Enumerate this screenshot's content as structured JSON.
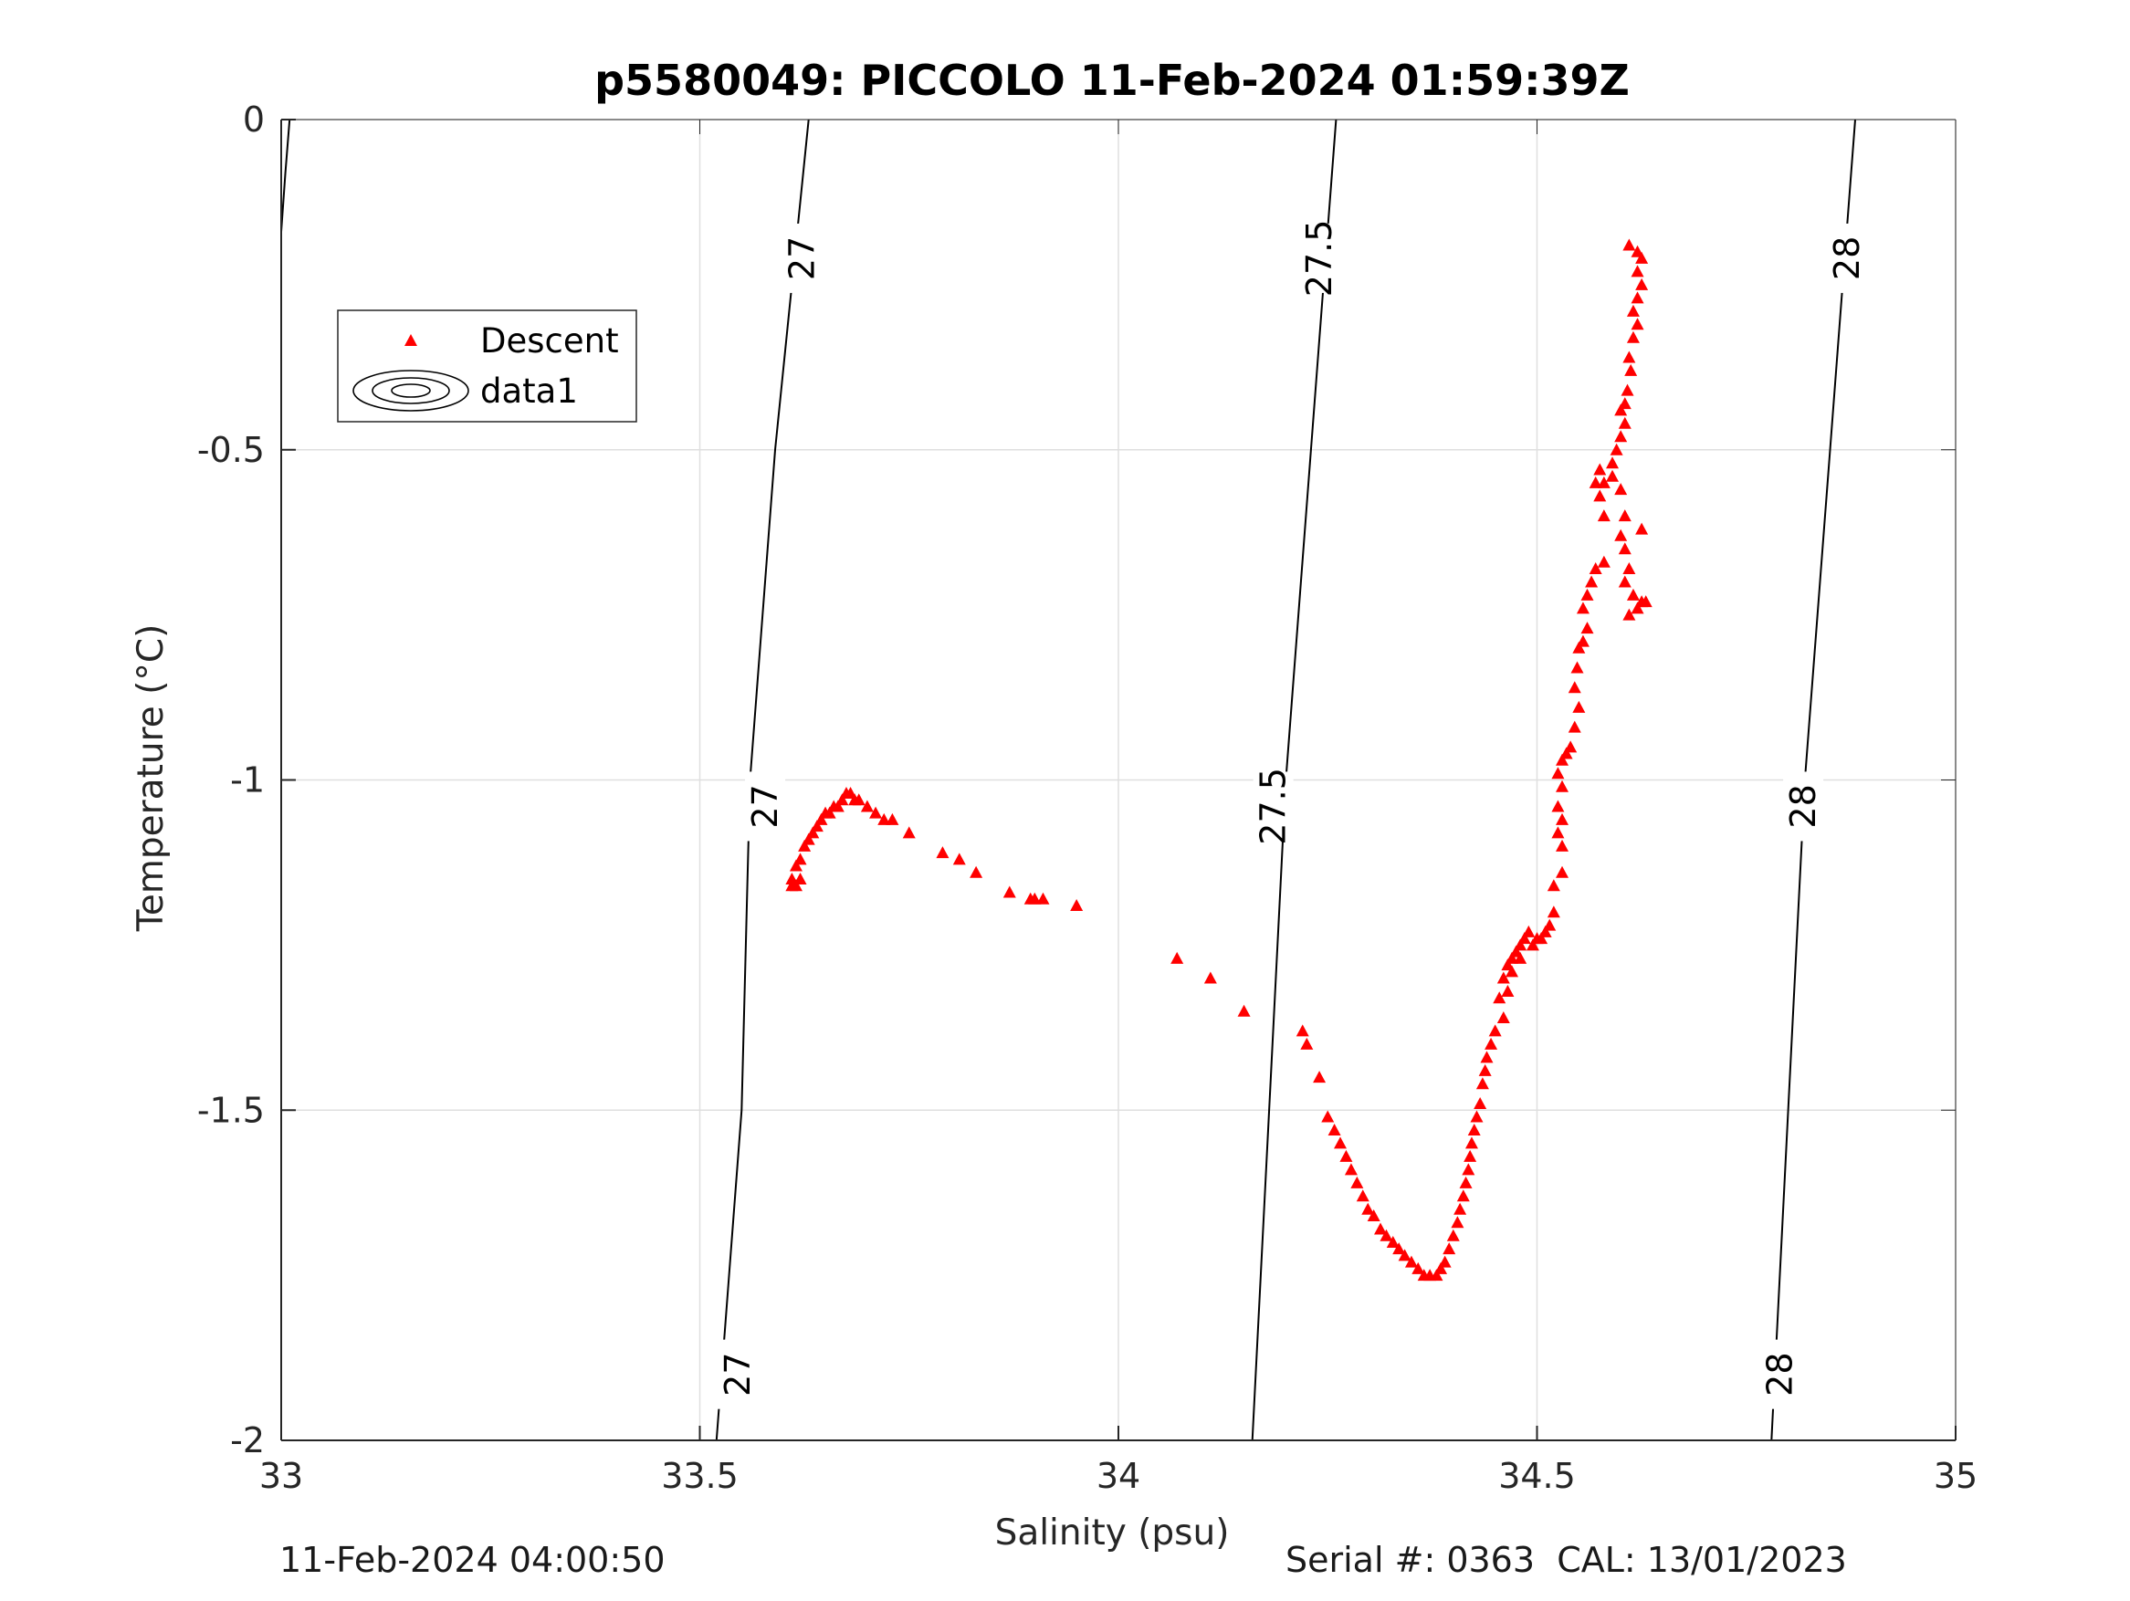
{
  "chart_data": {
    "type": "scatter",
    "title": "p5580049: PICCOLO 11-Feb-2024 01:59:39Z",
    "xlabel": "Salinity (psu)",
    "ylabel": "Temperature (°C)",
    "xlim": [
      33,
      35
    ],
    "ylim": [
      -2,
      0
    ],
    "xticks": [
      33,
      33.5,
      34,
      34.5,
      35
    ],
    "xtick_labels": [
      "33",
      "33.5",
      "34",
      "34.5",
      "35"
    ],
    "yticks": [
      0,
      -0.5,
      -1,
      -1.5,
      -2
    ],
    "ytick_labels": [
      "0",
      "-0.5",
      "-1",
      "-1.5",
      "-2"
    ],
    "grid": true,
    "legend": {
      "placement": "top-left",
      "entries": [
        {
          "label": "Descent",
          "marker": "triangle",
          "color": "#ff0000"
        },
        {
          "label": "data1",
          "marker": "contour",
          "color": "#000000"
        }
      ]
    },
    "contours": [
      {
        "label": "27",
        "line": [
          [
            33.52,
            -2
          ],
          [
            33.55,
            -1.5
          ],
          [
            33.56,
            -1
          ],
          [
            33.59,
            -0.5
          ],
          [
            33.63,
            0
          ]
        ],
        "label_positions": [
          [
            33.545,
            -1.9
          ],
          [
            33.578,
            -1.04
          ],
          [
            33.622,
            -0.21
          ]
        ]
      },
      {
        "label": "27.5",
        "line": [
          [
            34.16,
            -2
          ],
          [
            34.18,
            -1.5
          ],
          [
            34.2,
            -1
          ],
          [
            34.23,
            -0.5
          ],
          [
            34.26,
            0
          ]
        ],
        "label_positions": [
          [
            34.185,
            -1.04
          ],
          [
            34.24,
            -0.21
          ]
        ]
      },
      {
        "label": "28",
        "line": [
          [
            34.78,
            -2
          ],
          [
            34.8,
            -1.5
          ],
          [
            34.82,
            -1
          ],
          [
            34.85,
            -0.5
          ],
          [
            34.88,
            0
          ]
        ],
        "label_positions": [
          [
            34.79,
            -1.9
          ],
          [
            34.818,
            -1.04
          ],
          [
            34.87,
            -0.21
          ]
        ]
      },
      {
        "label": "",
        "line": [
          [
            33,
            -0.17
          ],
          [
            33.005,
            -0.08
          ],
          [
            33.01,
            0
          ]
        ],
        "label_positions": []
      }
    ],
    "series": [
      {
        "name": "Descent",
        "marker": "triangle",
        "color": "#ff0000",
        "points": [
          [
            34.61,
            -0.19
          ],
          [
            34.62,
            -0.2
          ],
          [
            34.625,
            -0.21
          ],
          [
            34.62,
            -0.23
          ],
          [
            34.625,
            -0.25
          ],
          [
            34.62,
            -0.27
          ],
          [
            34.615,
            -0.29
          ],
          [
            34.62,
            -0.31
          ],
          [
            34.615,
            -0.33
          ],
          [
            34.61,
            -0.36
          ],
          [
            34.612,
            -0.38
          ],
          [
            34.608,
            -0.41
          ],
          [
            34.605,
            -0.43
          ],
          [
            34.6,
            -0.44
          ],
          [
            34.605,
            -0.46
          ],
          [
            34.6,
            -0.48
          ],
          [
            34.595,
            -0.5
          ],
          [
            34.59,
            -0.52
          ],
          [
            34.59,
            -0.54
          ],
          [
            34.58,
            -0.55
          ],
          [
            34.575,
            -0.53
          ],
          [
            34.57,
            -0.55
          ],
          [
            34.575,
            -0.57
          ],
          [
            34.58,
            -0.6
          ],
          [
            34.6,
            -0.56
          ],
          [
            34.605,
            -0.6
          ],
          [
            34.6,
            -0.63
          ],
          [
            34.605,
            -0.65
          ],
          [
            34.61,
            -0.68
          ],
          [
            34.605,
            -0.7
          ],
          [
            34.615,
            -0.72
          ],
          [
            34.62,
            -0.74
          ],
          [
            34.61,
            -0.75
          ],
          [
            34.625,
            -0.73
          ],
          [
            34.63,
            -0.73
          ],
          [
            34.625,
            -0.62
          ],
          [
            34.58,
            -0.67
          ],
          [
            34.57,
            -0.68
          ],
          [
            34.565,
            -0.7
          ],
          [
            34.56,
            -0.72
          ],
          [
            34.555,
            -0.74
          ],
          [
            34.56,
            -0.77
          ],
          [
            34.555,
            -0.79
          ],
          [
            34.55,
            -0.8
          ],
          [
            34.548,
            -0.83
          ],
          [
            34.545,
            -0.86
          ],
          [
            34.55,
            -0.89
          ],
          [
            34.545,
            -0.92
          ],
          [
            34.54,
            -0.95
          ],
          [
            34.535,
            -0.96
          ],
          [
            34.53,
            -0.97
          ],
          [
            34.525,
            -0.99
          ],
          [
            34.53,
            -1.01
          ],
          [
            34.525,
            -1.04
          ],
          [
            34.53,
            -1.06
          ],
          [
            34.525,
            -1.08
          ],
          [
            34.53,
            -1.1
          ],
          [
            34.53,
            -1.14
          ],
          [
            34.52,
            -1.16
          ],
          [
            34.52,
            -1.2
          ],
          [
            34.515,
            -1.22
          ],
          [
            34.51,
            -1.23
          ],
          [
            34.505,
            -1.24
          ],
          [
            34.5,
            -1.24
          ],
          [
            34.495,
            -1.25
          ],
          [
            34.49,
            -1.23
          ],
          [
            34.485,
            -1.24
          ],
          [
            34.48,
            -1.25
          ],
          [
            34.475,
            -1.26
          ],
          [
            34.48,
            -1.27
          ],
          [
            34.47,
            -1.27
          ],
          [
            34.465,
            -1.28
          ],
          [
            34.47,
            -1.29
          ],
          [
            34.46,
            -1.3
          ],
          [
            34.465,
            -1.32
          ],
          [
            34.455,
            -1.33
          ],
          [
            34.46,
            -1.36
          ],
          [
            34.45,
            -1.38
          ],
          [
            34.445,
            -1.4
          ],
          [
            34.44,
            -1.42
          ],
          [
            34.438,
            -1.44
          ],
          [
            34.435,
            -1.46
          ],
          [
            34.432,
            -1.49
          ],
          [
            34.428,
            -1.51
          ],
          [
            34.425,
            -1.53
          ],
          [
            34.422,
            -1.55
          ],
          [
            34.42,
            -1.57
          ],
          [
            34.418,
            -1.59
          ],
          [
            34.415,
            -1.61
          ],
          [
            34.412,
            -1.63
          ],
          [
            34.408,
            -1.65
          ],
          [
            34.405,
            -1.67
          ],
          [
            34.4,
            -1.69
          ],
          [
            34.395,
            -1.71
          ],
          [
            34.39,
            -1.73
          ],
          [
            34.385,
            -1.74
          ],
          [
            34.38,
            -1.75
          ],
          [
            34.372,
            -1.75
          ],
          [
            34.365,
            -1.75
          ],
          [
            34.358,
            -1.74
          ],
          [
            34.35,
            -1.73
          ],
          [
            34.342,
            -1.72
          ],
          [
            34.335,
            -1.71
          ],
          [
            34.328,
            -1.7
          ],
          [
            34.32,
            -1.69
          ],
          [
            34.313,
            -1.68
          ],
          [
            34.305,
            -1.66
          ],
          [
            34.298,
            -1.65
          ],
          [
            34.292,
            -1.63
          ],
          [
            34.285,
            -1.61
          ],
          [
            34.278,
            -1.59
          ],
          [
            34.272,
            -1.57
          ],
          [
            34.265,
            -1.55
          ],
          [
            34.258,
            -1.53
          ],
          [
            34.25,
            -1.51
          ],
          [
            34.24,
            -1.45
          ],
          [
            34.225,
            -1.4
          ],
          [
            34.22,
            -1.38
          ],
          [
            34.15,
            -1.35
          ],
          [
            34.11,
            -1.3
          ],
          [
            34.07,
            -1.27
          ],
          [
            33.95,
            -1.19
          ],
          [
            33.91,
            -1.18
          ],
          [
            33.9,
            -1.18
          ],
          [
            33.895,
            -1.18
          ],
          [
            33.87,
            -1.17
          ],
          [
            33.83,
            -1.14
          ],
          [
            33.81,
            -1.12
          ],
          [
            33.79,
            -1.11
          ],
          [
            33.75,
            -1.08
          ],
          [
            33.73,
            -1.06
          ],
          [
            33.72,
            -1.06
          ],
          [
            33.71,
            -1.05
          ],
          [
            33.7,
            -1.04
          ],
          [
            33.69,
            -1.03
          ],
          [
            33.685,
            -1.03
          ],
          [
            33.68,
            -1.02
          ],
          [
            33.675,
            -1.02
          ],
          [
            33.67,
            -1.03
          ],
          [
            33.665,
            -1.04
          ],
          [
            33.66,
            -1.04
          ],
          [
            33.655,
            -1.05
          ],
          [
            33.65,
            -1.05
          ],
          [
            33.645,
            -1.06
          ],
          [
            33.64,
            -1.07
          ],
          [
            33.635,
            -1.08
          ],
          [
            33.63,
            -1.09
          ],
          [
            33.625,
            -1.1
          ],
          [
            33.62,
            -1.12
          ],
          [
            33.615,
            -1.13
          ],
          [
            33.62,
            -1.15
          ],
          [
            33.615,
            -1.16
          ],
          [
            33.61,
            -1.15
          ],
          [
            33.61,
            -1.16
          ]
        ]
      }
    ]
  },
  "footer": {
    "timestamp": "11-Feb-2024 04:00:50",
    "serial": "Serial #: 0363  CAL: 13/01/2023"
  }
}
